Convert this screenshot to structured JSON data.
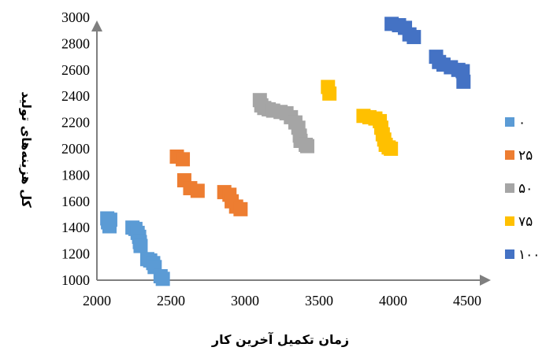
{
  "chart_data": {
    "type": "scatter",
    "title": "",
    "xlabel": "زمان تکمیل آخرین کار",
    "ylabel": "کل هزینه‌های تولید",
    "xlim": [
      2000,
      4500
    ],
    "ylim": [
      1000,
      3000
    ],
    "x_ticks": [
      2000,
      2500,
      3000,
      3500,
      4000,
      4500
    ],
    "y_ticks": [
      1000,
      1200,
      1400,
      1600,
      1800,
      2000,
      2200,
      2400,
      2600,
      2800,
      3000
    ],
    "x_tick_labels": [
      "2000",
      "2500",
      "3000",
      "3500",
      "4000",
      "4500"
    ],
    "y_tick_labels": [
      "1000",
      "1200",
      "1400",
      "1600",
      "1800",
      "2000",
      "2200",
      "2400",
      "2600",
      "2800",
      "3000"
    ],
    "grid": false,
    "legend_position": "right",
    "series": [
      {
        "name": "۰",
        "color": "#5B9BD5",
        "points": [
          [
            2070,
            1470
          ],
          [
            2075,
            1440
          ],
          [
            2085,
            1410
          ],
          [
            2090,
            1460
          ],
          [
            2240,
            1400
          ],
          [
            2260,
            1390
          ],
          [
            2275,
            1360
          ],
          [
            2285,
            1330
          ],
          [
            2290,
            1290
          ],
          [
            2295,
            1260
          ],
          [
            2340,
            1160
          ],
          [
            2360,
            1150
          ],
          [
            2380,
            1130
          ],
          [
            2390,
            1100
          ],
          [
            2430,
            1030
          ],
          [
            2445,
            1010
          ]
        ]
      },
      {
        "name": "۲۵",
        "color": "#ED7D31",
        "points": [
          [
            2540,
            1940
          ],
          [
            2580,
            1920
          ],
          [
            2590,
            1760
          ],
          [
            2630,
            1700
          ],
          [
            2680,
            1680
          ],
          [
            2860,
            1670
          ],
          [
            2895,
            1650
          ],
          [
            2910,
            1600
          ],
          [
            2940,
            1560
          ],
          [
            2970,
            1540
          ]
        ]
      },
      {
        "name": "۵۰",
        "color": "#A5A5A5",
        "points": [
          [
            3100,
            2370
          ],
          [
            3110,
            2330
          ],
          [
            3130,
            2310
          ],
          [
            3160,
            2300
          ],
          [
            3190,
            2290
          ],
          [
            3240,
            2280
          ],
          [
            3280,
            2270
          ],
          [
            3310,
            2240
          ],
          [
            3340,
            2200
          ],
          [
            3360,
            2160
          ],
          [
            3370,
            2100
          ],
          [
            3375,
            2060
          ],
          [
            3410,
            2030
          ],
          [
            3420,
            2020
          ]
        ]
      },
      {
        "name": "۷۵",
        "color": "#FFC000",
        "points": [
          [
            3560,
            2470
          ],
          [
            3570,
            2420
          ],
          [
            3800,
            2250
          ],
          [
            3840,
            2240
          ],
          [
            3880,
            2230
          ],
          [
            3910,
            2210
          ],
          [
            3920,
            2160
          ],
          [
            3930,
            2110
          ],
          [
            3940,
            2070
          ],
          [
            3950,
            2030
          ],
          [
            3970,
            2010
          ],
          [
            3985,
            2000
          ]
        ]
      },
      {
        "name": "۱۰۰",
        "color": "#4472C4",
        "points": [
          [
            3990,
            2950
          ],
          [
            4040,
            2940
          ],
          [
            4080,
            2920
          ],
          [
            4110,
            2870
          ],
          [
            4140,
            2850
          ],
          [
            4290,
            2700
          ],
          [
            4310,
            2660
          ],
          [
            4340,
            2640
          ],
          [
            4390,
            2620
          ],
          [
            4440,
            2600
          ],
          [
            4470,
            2590
          ],
          [
            4475,
            2510
          ]
        ]
      }
    ]
  }
}
